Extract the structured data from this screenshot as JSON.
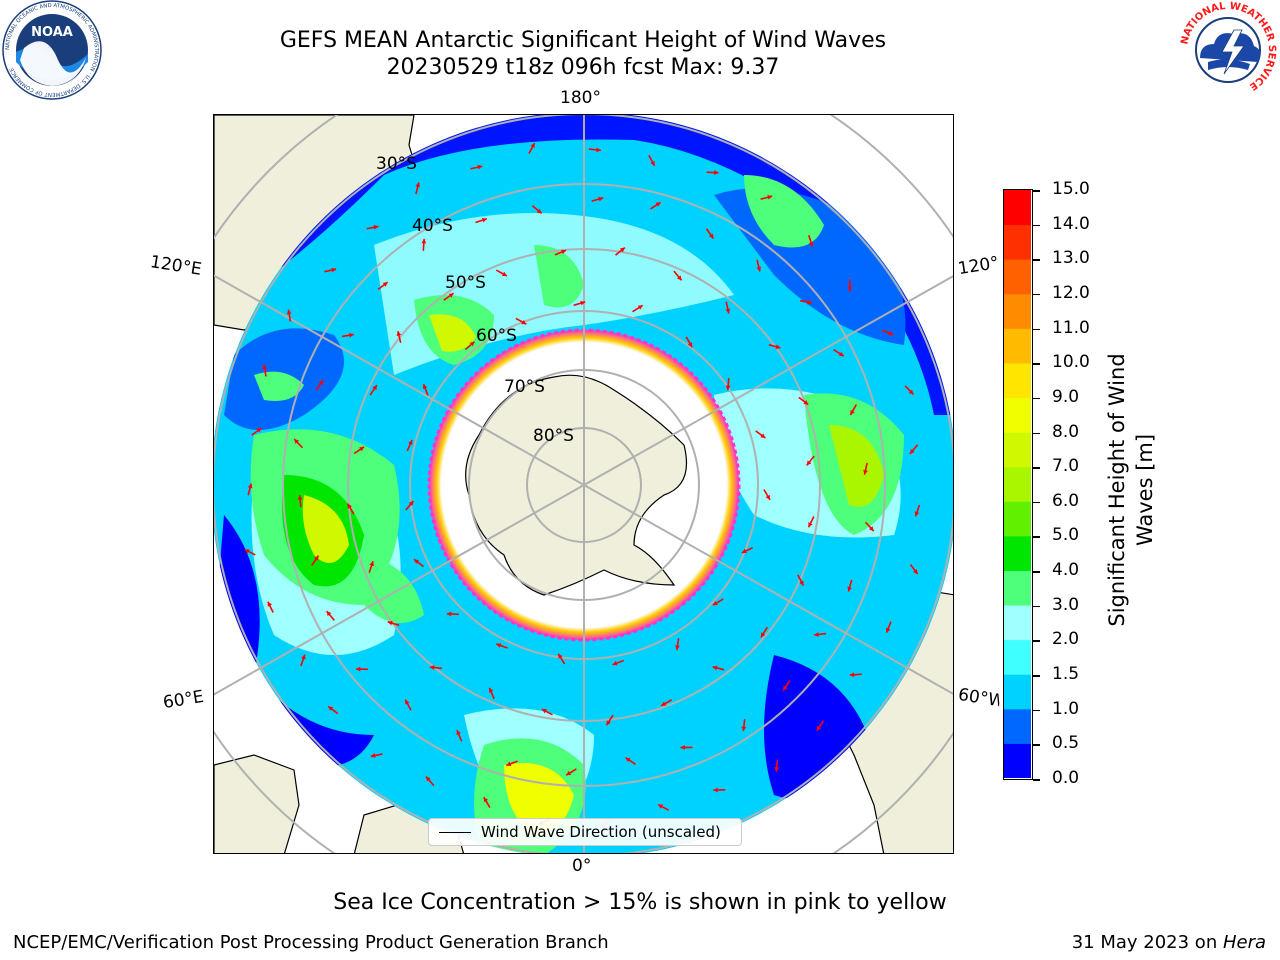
{
  "header": {
    "title_line1": "GEFS MEAN Antarctic Significant Height of Wind Waves",
    "title_line2": "20230529 t18z 096h fcst   Max: 9.37"
  },
  "logos": {
    "noaa": {
      "text": "NOAA",
      "ring_text": "NATIONAL OCEANIC AND ATMOSPHERIC ADMINISTRATION · U.S. DEPARTMENT OF COMMERCE"
    },
    "nws": {
      "ring_text": "NATIONAL WEATHER SERVICE"
    }
  },
  "map": {
    "projection": "south polar stereographic",
    "lon_labels": {
      "top": "180°",
      "bottom": "0°",
      "left_upper": "120°E",
      "left_lower": "60°E",
      "right_upper": "120°",
      "right_lower": "60°W"
    },
    "lat_labels": [
      "30°S",
      "40°S",
      "50°S",
      "60°S",
      "70°S",
      "80°S"
    ],
    "colors": {
      "land": "#efefdb",
      "coast": "#000000",
      "grid": "#b0b0b0",
      "arrow": "#ff0000",
      "ice_fill": "#ffffff",
      "ice_edge_pink": "#ff33cc",
      "ice_edge_yellow": "#ffcc00"
    },
    "legend_label": "Wind Wave Direction (unscaled)"
  },
  "colorbar": {
    "label_line1": "Significant Height of Wind",
    "label_line2": "Waves [m]",
    "ticks": [
      "0.0",
      "0.5",
      "1.0",
      "1.5",
      "2.0",
      "3.0",
      "4.0",
      "5.0",
      "6.0",
      "7.0",
      "8.0",
      "9.0",
      "10.0",
      "11.0",
      "12.0",
      "13.0",
      "14.0",
      "15.0"
    ],
    "colors": [
      "#0000ff",
      "#0068ff",
      "#00d2ff",
      "#40ffff",
      "#a0ffff",
      "#4dff7a",
      "#00e600",
      "#60f000",
      "#aaf500",
      "#d0f800",
      "#f0ff00",
      "#ffe600",
      "#ffbb00",
      "#ff8c00",
      "#ff6000",
      "#ff3000",
      "#ff0000"
    ]
  },
  "footer": {
    "note": "Sea Ice Concentration > 15% is shown in pink to yellow",
    "left": "NCEP/EMC/Verification Post Processing Product Generation Branch",
    "right_prefix": "31 May 2023 on ",
    "right_machine": "Hera"
  }
}
